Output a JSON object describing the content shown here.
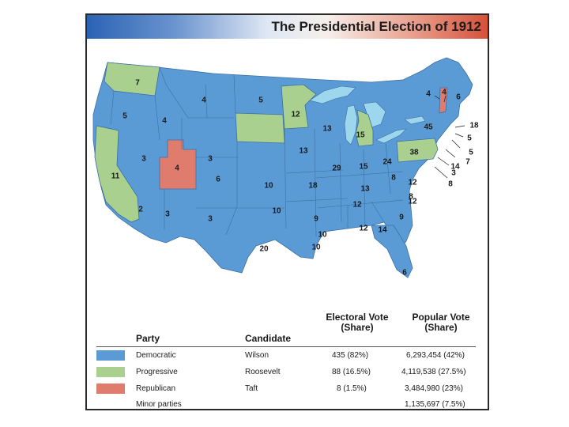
{
  "title": "The Presidential Election of 1912",
  "colors": {
    "democratic": "#5b9bd5",
    "progressive": "#a9d08e",
    "republican": "#e07c6e",
    "water": "#9dd7ee",
    "border": "#3c6fa5"
  },
  "map": {
    "labels": [
      "7",
      "4",
      "5",
      "4",
      "5",
      "12",
      "6",
      "4",
      "4",
      "18",
      "5",
      "13",
      "45",
      "15",
      "5",
      "7",
      "38",
      "3",
      "3",
      "8",
      "13",
      "4",
      "14",
      "24",
      "29",
      "15",
      "3",
      "11",
      "6",
      "10",
      "18",
      "13",
      "8",
      "12",
      "8",
      "2",
      "3",
      "12",
      "3",
      "10",
      "9",
      "12",
      "10",
      "12",
      "14",
      "9",
      "20",
      "10",
      "6"
    ]
  },
  "legend": {
    "headers": {
      "party": "Party",
      "candidate": "Candidate",
      "electoral": "Electoral Vote\n(Share)",
      "popular": "Popular Vote\n(Share)"
    },
    "rows": [
      {
        "party": "Democratic",
        "candidate": "Wilson",
        "electoral": "435 (82%)",
        "popular": "6,293,454 (42%)",
        "color": "#5b9bd5"
      },
      {
        "party": "Progressive",
        "candidate": "Roosevelt",
        "electoral": "88 (16.5%)",
        "popular": "4,119,538 (27.5%)",
        "color": "#a9d08e"
      },
      {
        "party": "Republican",
        "candidate": "Taft",
        "electoral": "8 (1.5%)",
        "popular": "3,484,980 (23%)",
        "color": "#e07c6e"
      },
      {
        "party": "Minor parties",
        "candidate": "",
        "electoral": "",
        "popular": "1,135,697 (7.5%)",
        "color": ""
      }
    ]
  }
}
